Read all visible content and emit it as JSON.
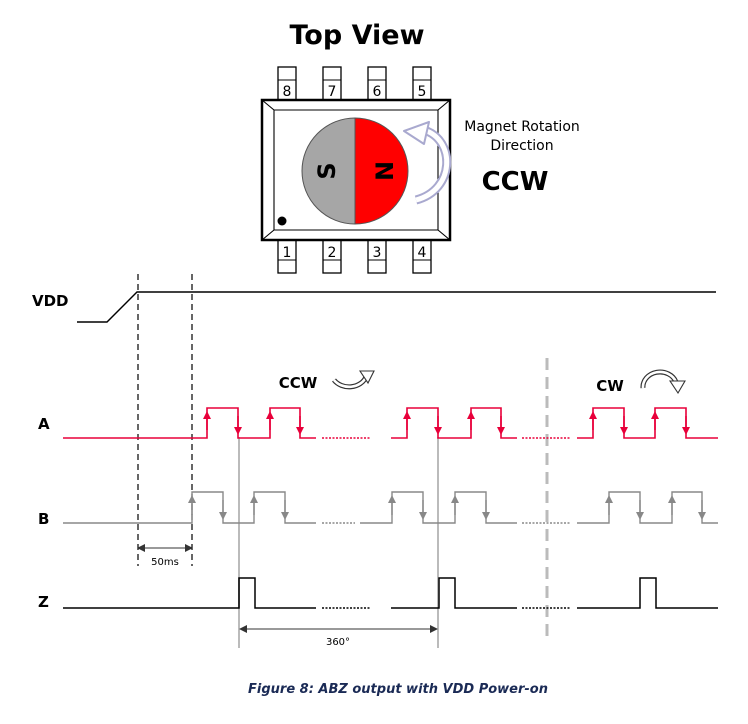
{
  "title": "Top View",
  "chip": {
    "top_pins": [
      "8",
      "7",
      "6",
      "5"
    ],
    "bottom_pins": [
      "1",
      "2",
      "3",
      "4"
    ],
    "poles": {
      "south": "S",
      "north": "N"
    },
    "colors": {
      "south": "#a6a6a6",
      "north": "#ff0000",
      "arrow": "#a9a9cf"
    }
  },
  "rotation_label": {
    "line1": "Magnet Rotation",
    "line2": "Direction",
    "direction": "CCW"
  },
  "signals": {
    "vdd": "VDD",
    "a": "A",
    "b": "B",
    "z": "Z"
  },
  "direction_labels": {
    "ccw": "CCW",
    "cw": "CW"
  },
  "annotations": {
    "delay": "50ms",
    "period": "360°"
  },
  "caption": "Figure 8: ABZ output with VDD Power-on",
  "colors": {
    "signal_a": "#e8003a",
    "signal_b": "#888888",
    "signal_z": "#000000",
    "marker": "#bbbbbb"
  }
}
